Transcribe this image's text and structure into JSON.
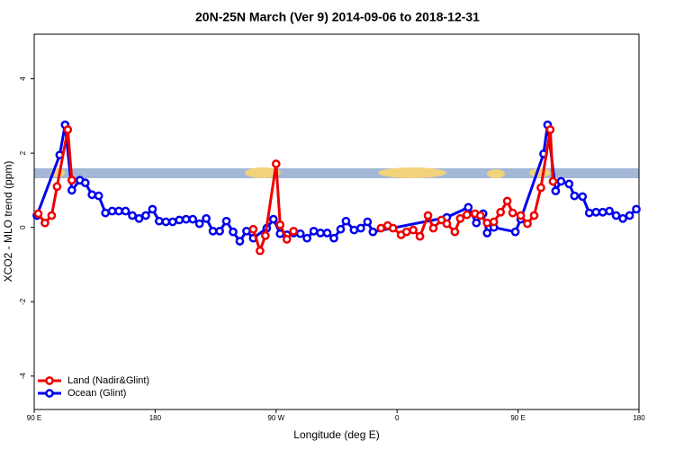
{
  "chart_data": {
    "type": "line",
    "title": "20N-25N March (Ver 9)   2014-09-06 to 2018-12-31",
    "x_label": "Longitude (deg E)",
    "y_label": "XCO2 - MLO trend (ppm)",
    "xlim": [
      90,
      540
    ],
    "ylim": [
      -4.9,
      5.2
    ],
    "xticks": [
      {
        "value": 90,
        "label": "90 E"
      },
      180,
      {
        "value": 270,
        "label": "90 W"
      },
      {
        "value": 360,
        "label": "0"
      },
      {
        "value": 450,
        "label": "90 E"
      },
      {
        "value": 540,
        "label": "180"
      }
    ],
    "yticks": [
      -4,
      -2,
      0,
      2,
      4
    ],
    "legend": "bottom-left",
    "series": [
      {
        "name": "Ocean (Glint)",
        "color": "#0000ee",
        "x": [
          92,
          109,
          113,
          118,
          124,
          128,
          133,
          138,
          143,
          148,
          153,
          158,
          163,
          168,
          173,
          178,
          183,
          188,
          193,
          198,
          203,
          208,
          213,
          218,
          223,
          228,
          233,
          238,
          243,
          248,
          253,
          263,
          268,
          273,
          278,
          283,
          288,
          293,
          298,
          303,
          308,
          313,
          318,
          322,
          328,
          333,
          338,
          342,
          397,
          413,
          419,
          424,
          427,
          432,
          448,
          452,
          469,
          472,
          478,
          482,
          488,
          492,
          498,
          503,
          508,
          513,
          518,
          523,
          528,
          533,
          538
        ],
        "values": [
          0.32,
          1.95,
          2.76,
          1.0,
          1.27,
          1.2,
          0.88,
          0.85,
          0.39,
          0.44,
          0.44,
          0.44,
          0.32,
          0.24,
          0.32,
          0.49,
          0.17,
          0.15,
          0.15,
          0.2,
          0.22,
          0.22,
          0.1,
          0.24,
          -0.1,
          -0.1,
          0.17,
          -0.12,
          -0.37,
          -0.1,
          -0.29,
          -0.02,
          0.22,
          -0.17,
          -0.2,
          -0.15,
          -0.17,
          -0.29,
          -0.1,
          -0.15,
          -0.15,
          -0.29,
          -0.05,
          0.17,
          -0.07,
          -0.02,
          0.15,
          -0.12,
          0.27,
          0.54,
          0.12,
          0.37,
          -0.15,
          0.0,
          -0.12,
          0.22,
          1.98,
          2.76,
          0.98,
          1.24,
          1.17,
          0.85,
          0.83,
          0.39,
          0.41,
          0.41,
          0.44,
          0.32,
          0.24,
          0.32,
          0.49
        ]
      },
      {
        "name": "Land (Nadir&Glint)",
        "color": "#ee0000",
        "x": [
          93,
          98,
          103,
          107,
          115,
          118,
          null,
          253,
          258,
          262,
          270,
          273,
          278,
          283,
          null,
          348,
          353,
          357,
          363,
          367,
          372,
          377,
          383,
          387,
          393,
          397,
          403,
          407,
          412,
          418,
          422,
          427,
          432,
          437,
          442,
          446,
          452,
          457,
          462,
          467,
          474,
          476
        ],
        "values": [
          0.37,
          0.12,
          0.32,
          1.1,
          2.63,
          1.27,
          null,
          -0.05,
          -0.63,
          -0.22,
          1.71,
          0.07,
          -0.32,
          -0.1,
          null,
          -0.02,
          0.05,
          -0.02,
          -0.2,
          -0.12,
          -0.07,
          -0.24,
          0.32,
          -0.02,
          0.2,
          0.1,
          -0.12,
          0.24,
          0.34,
          0.37,
          0.32,
          0.12,
          0.15,
          0.41,
          0.71,
          0.39,
          0.32,
          0.1,
          0.32,
          1.07,
          2.63,
          1.24
        ]
      }
    ]
  }
}
